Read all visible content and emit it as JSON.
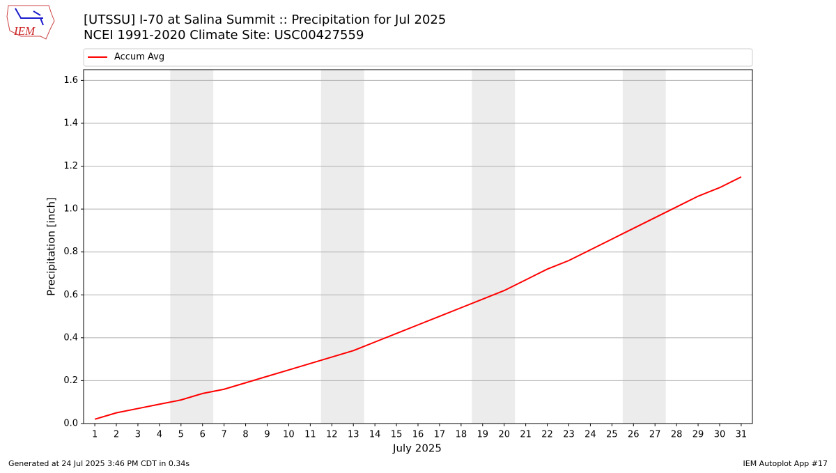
{
  "chart_data": {
    "type": "line",
    "title": "[UTSSU] I-70 at Salina Summit  :: Precipitation for Jul 2025",
    "subtitle": "NCEI 1991-2020 Climate Site: USC00427559",
    "x_label": "July 2025",
    "y_label": "Precipitation [inch]",
    "x": [
      1,
      2,
      3,
      4,
      5,
      6,
      7,
      8,
      9,
      10,
      11,
      12,
      13,
      14,
      15,
      16,
      17,
      18,
      19,
      20,
      21,
      22,
      23,
      24,
      25,
      26,
      27,
      28,
      29,
      30,
      31
    ],
    "series": [
      {
        "name": "Accum Avg",
        "color": "#ff0000",
        "values": [
          0.02,
          0.05,
          0.07,
          0.09,
          0.11,
          0.14,
          0.16,
          0.19,
          0.22,
          0.25,
          0.28,
          0.31,
          0.34,
          0.38,
          0.42,
          0.46,
          0.5,
          0.54,
          0.58,
          0.62,
          0.67,
          0.72,
          0.76,
          0.81,
          0.86,
          0.91,
          0.96,
          1.01,
          1.06,
          1.1,
          1.15
        ]
      }
    ],
    "xlim": [
      0.48,
      31.52
    ],
    "ylim": [
      0,
      1.65
    ],
    "xticks": [
      1,
      2,
      3,
      4,
      5,
      6,
      7,
      8,
      9,
      10,
      11,
      12,
      13,
      14,
      15,
      16,
      17,
      18,
      19,
      20,
      21,
      22,
      23,
      24,
      25,
      26,
      27,
      28,
      29,
      30,
      31
    ],
    "yticks": [
      {
        "value": 0,
        "label": "0.0"
      },
      0.2,
      0.4,
      0.6,
      0.8,
      {
        "value": 1,
        "label": "1.0"
      },
      1.2,
      1.4,
      1.6
    ],
    "shaded_spans": [
      [
        4.5,
        6.5
      ],
      [
        11.5,
        13.5
      ],
      [
        18.5,
        20.5
      ],
      [
        25.5,
        27.5
      ]
    ],
    "shade_color": "#ececec",
    "grid": true,
    "legend": "top"
  },
  "logo_text": "IEM",
  "footer_left": "Generated at 24 Jul 2025 3:46 PM CDT in 0.34s",
  "footer_right": "IEM Autoplot App #17"
}
